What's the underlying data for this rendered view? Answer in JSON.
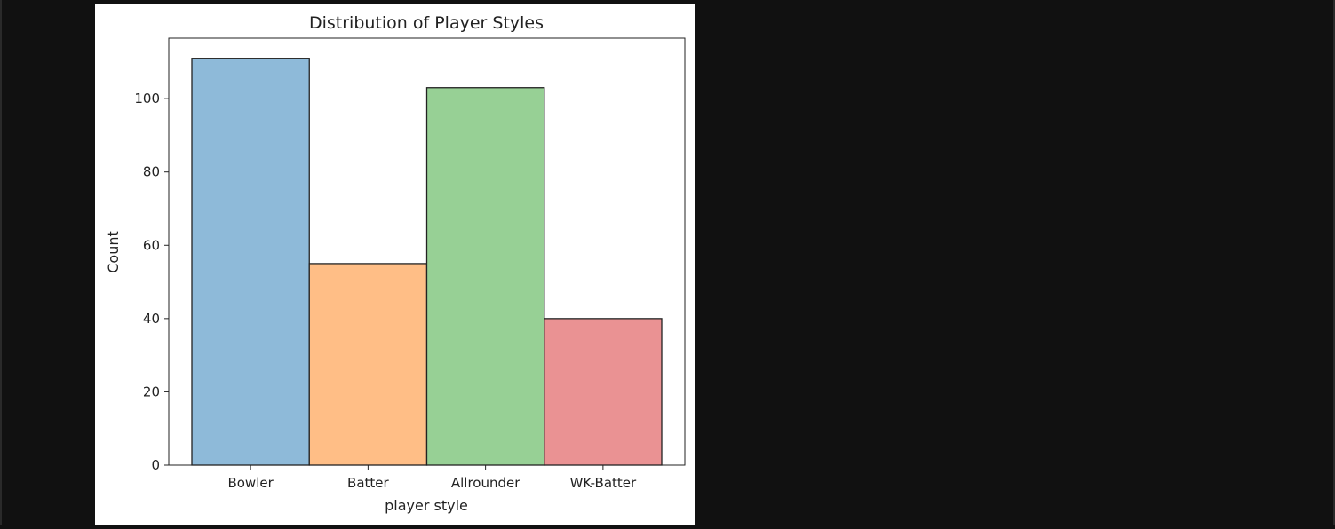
{
  "chart_data": {
    "type": "bar",
    "title": "Distribution of Player Styles",
    "xlabel": "player style",
    "ylabel": "Count",
    "categories": [
      "Bowler",
      "Batter",
      "Allrounder",
      "WK-Batter"
    ],
    "values": [
      111,
      55,
      103,
      40
    ],
    "colors": [
      "#8ebad9",
      "#ffbe86",
      "#97d095",
      "#ea9293"
    ],
    "edge_color": "#222222",
    "ylim": [
      0,
      116.5
    ],
    "yticks": [
      0,
      20,
      40,
      60,
      80,
      100
    ],
    "ytick_labels": [
      "0",
      "20",
      "40",
      "60",
      "80",
      "100"
    ],
    "grid": false,
    "legend": "none"
  }
}
